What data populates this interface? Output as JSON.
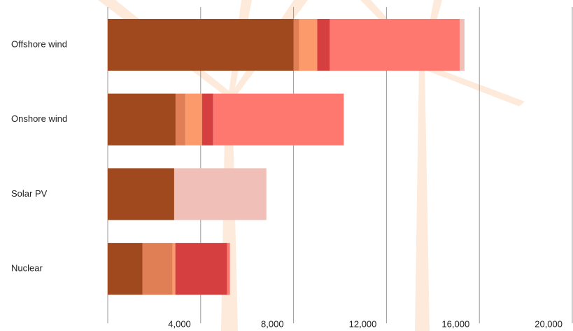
{
  "chart_data": {
    "type": "stacked-bar-horizontal",
    "categories": [
      "Offshore wind",
      "Onshore wind",
      "Solar PV",
      "Nuclear"
    ],
    "series": [
      {
        "color": "#a0481e",
        "values": [
          8000,
          2920,
          2860,
          1500
        ]
      },
      {
        "color": "#e07f55",
        "values": [
          240,
          420,
          0,
          1290
        ]
      },
      {
        "color": "#fd9a6c",
        "values": [
          780,
          720,
          0,
          120
        ]
      },
      {
        "color": "#d63f3f",
        "values": [
          540,
          480,
          0,
          2230
        ]
      },
      {
        "color": "#ff7870",
        "values": [
          5590,
          5620,
          0,
          120
        ]
      },
      {
        "color": "#f0c0b8",
        "values": [
          210,
          0,
          3970,
          0
        ]
      }
    ],
    "xlim": [
      0,
      20000
    ],
    "xticks": [
      {
        "value": 4000,
        "label": "4,000"
      },
      {
        "value": 8000,
        "label": "8,000"
      },
      {
        "value": 12000,
        "label": "12,000"
      },
      {
        "value": 16000,
        "label": "16,000"
      },
      {
        "value": 20000,
        "label": "20,000"
      }
    ],
    "grid": true
  }
}
